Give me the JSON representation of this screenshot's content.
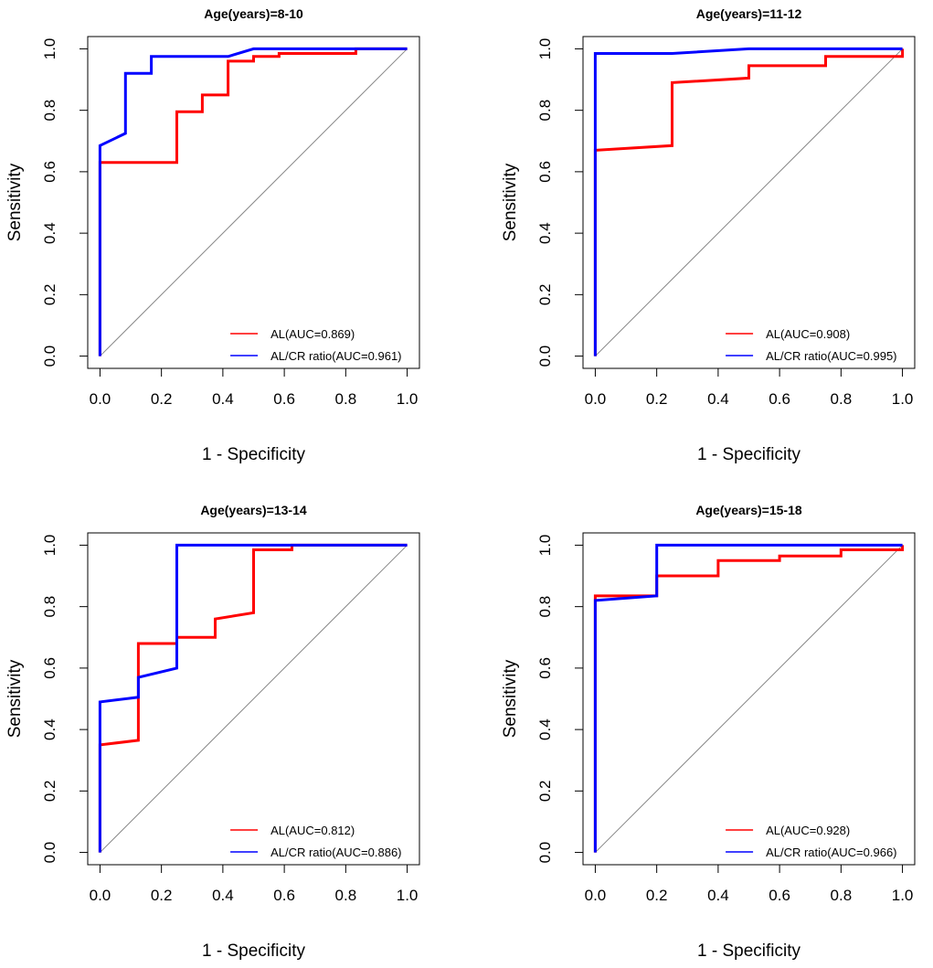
{
  "chart_data": [
    {
      "type": "line",
      "title": "Age(years)=8-10",
      "xlabel": "1 - Specificity",
      "ylabel": "Sensitivity",
      "xlim": [
        0,
        1
      ],
      "ylim": [
        0,
        1
      ],
      "xticks": [
        "0.0",
        "0.2",
        "0.4",
        "0.6",
        "0.8",
        "1.0"
      ],
      "yticks": [
        "0.0",
        "0.2",
        "0.4",
        "0.6",
        "0.8",
        "1.0"
      ],
      "reference_line": true,
      "legend_position": "bottom-right",
      "series": [
        {
          "name": "AL(AUC=0.869)",
          "color": "#ff0000",
          "points": [
            [
              0,
              0
            ],
            [
              0,
              0.63
            ],
            [
              0.25,
              0.63
            ],
            [
              0.25,
              0.795
            ],
            [
              0.333,
              0.795
            ],
            [
              0.333,
              0.85
            ],
            [
              0.417,
              0.85
            ],
            [
              0.417,
              0.96
            ],
            [
              0.5,
              0.96
            ],
            [
              0.5,
              0.975
            ],
            [
              0.583,
              0.975
            ],
            [
              0.583,
              0.985
            ],
            [
              0.833,
              0.985
            ],
            [
              0.833,
              1.0
            ],
            [
              1.0,
              1.0
            ]
          ]
        },
        {
          "name": "AL/CR ratio(AUC=0.961)",
          "color": "#0000ff",
          "points": [
            [
              0,
              0
            ],
            [
              0,
              0.685
            ],
            [
              0.083,
              0.725
            ],
            [
              0.083,
              0.92
            ],
            [
              0.167,
              0.92
            ],
            [
              0.167,
              0.975
            ],
            [
              0.417,
              0.975
            ],
            [
              0.5,
              1.0
            ],
            [
              1.0,
              1.0
            ]
          ]
        }
      ]
    },
    {
      "type": "line",
      "title": "Age(years)=11-12",
      "xlabel": "1 - Specificity",
      "ylabel": "Sensitivity",
      "xlim": [
        0,
        1
      ],
      "ylim": [
        0,
        1
      ],
      "xticks": [
        "0.0",
        "0.2",
        "0.4",
        "0.6",
        "0.8",
        "1.0"
      ],
      "yticks": [
        "0.0",
        "0.2",
        "0.4",
        "0.6",
        "0.8",
        "1.0"
      ],
      "reference_line": true,
      "legend_position": "bottom-right",
      "series": [
        {
          "name": "AL(AUC=0.908)",
          "color": "#ff0000",
          "points": [
            [
              0,
              0
            ],
            [
              0,
              0.67
            ],
            [
              0.25,
              0.685
            ],
            [
              0.25,
              0.89
            ],
            [
              0.5,
              0.905
            ],
            [
              0.5,
              0.945
            ],
            [
              0.75,
              0.945
            ],
            [
              0.75,
              0.975
            ],
            [
              1.0,
              0.975
            ],
            [
              1.0,
              1.0
            ]
          ]
        },
        {
          "name": "AL/CR ratio(AUC=0.995)",
          "color": "#0000ff",
          "points": [
            [
              0,
              0
            ],
            [
              0,
              0.985
            ],
            [
              0.25,
              0.985
            ],
            [
              0.5,
              1.0
            ],
            [
              1.0,
              1.0
            ]
          ]
        }
      ]
    },
    {
      "type": "line",
      "title": "Age(years)=13-14",
      "xlabel": "1 - Specificity",
      "ylabel": "Sensitivity",
      "xlim": [
        0,
        1
      ],
      "ylim": [
        0,
        1
      ],
      "xticks": [
        "0.0",
        "0.2",
        "0.4",
        "0.6",
        "0.8",
        "1.0"
      ],
      "yticks": [
        "0.0",
        "0.2",
        "0.4",
        "0.6",
        "0.8",
        "1.0"
      ],
      "reference_line": true,
      "legend_position": "bottom-right",
      "series": [
        {
          "name": "AL(AUC=0.812)",
          "color": "#ff0000",
          "points": [
            [
              0,
              0
            ],
            [
              0,
              0.35
            ],
            [
              0.125,
              0.365
            ],
            [
              0.125,
              0.68
            ],
            [
              0.25,
              0.68
            ],
            [
              0.25,
              0.7
            ],
            [
              0.375,
              0.7
            ],
            [
              0.375,
              0.76
            ],
            [
              0.5,
              0.78
            ],
            [
              0.5,
              0.985
            ],
            [
              0.625,
              0.985
            ],
            [
              0.625,
              1.0
            ],
            [
              1.0,
              1.0
            ]
          ]
        },
        {
          "name": "AL/CR ratio(AUC=0.886)",
          "color": "#0000ff",
          "points": [
            [
              0,
              0
            ],
            [
              0,
              0.49
            ],
            [
              0.125,
              0.505
            ],
            [
              0.125,
              0.57
            ],
            [
              0.25,
              0.6
            ],
            [
              0.25,
              1.0
            ],
            [
              1.0,
              1.0
            ]
          ]
        }
      ]
    },
    {
      "type": "line",
      "title": "Age(years)=15-18",
      "xlabel": "1 - Specificity",
      "ylabel": "Sensitivity",
      "xlim": [
        0,
        1
      ],
      "ylim": [
        0,
        1
      ],
      "xticks": [
        "0.0",
        "0.2",
        "0.4",
        "0.6",
        "0.8",
        "1.0"
      ],
      "yticks": [
        "0.0",
        "0.2",
        "0.4",
        "0.6",
        "0.8",
        "1.0"
      ],
      "reference_line": true,
      "legend_position": "bottom-right",
      "series": [
        {
          "name": "AL(AUC=0.928)",
          "color": "#ff0000",
          "points": [
            [
              0,
              0
            ],
            [
              0,
              0.835
            ],
            [
              0.2,
              0.835
            ],
            [
              0.2,
              0.9
            ],
            [
              0.4,
              0.9
            ],
            [
              0.4,
              0.95
            ],
            [
              0.6,
              0.95
            ],
            [
              0.6,
              0.965
            ],
            [
              0.8,
              0.965
            ],
            [
              0.8,
              0.985
            ],
            [
              1.0,
              0.985
            ],
            [
              1.0,
              1.0
            ]
          ]
        },
        {
          "name": "AL/CR ratio(AUC=0.966)",
          "color": "#0000ff",
          "points": [
            [
              0,
              0
            ],
            [
              0,
              0.82
            ],
            [
              0.2,
              0.835
            ],
            [
              0.2,
              1.0
            ],
            [
              1.0,
              1.0
            ]
          ]
        }
      ]
    }
  ]
}
